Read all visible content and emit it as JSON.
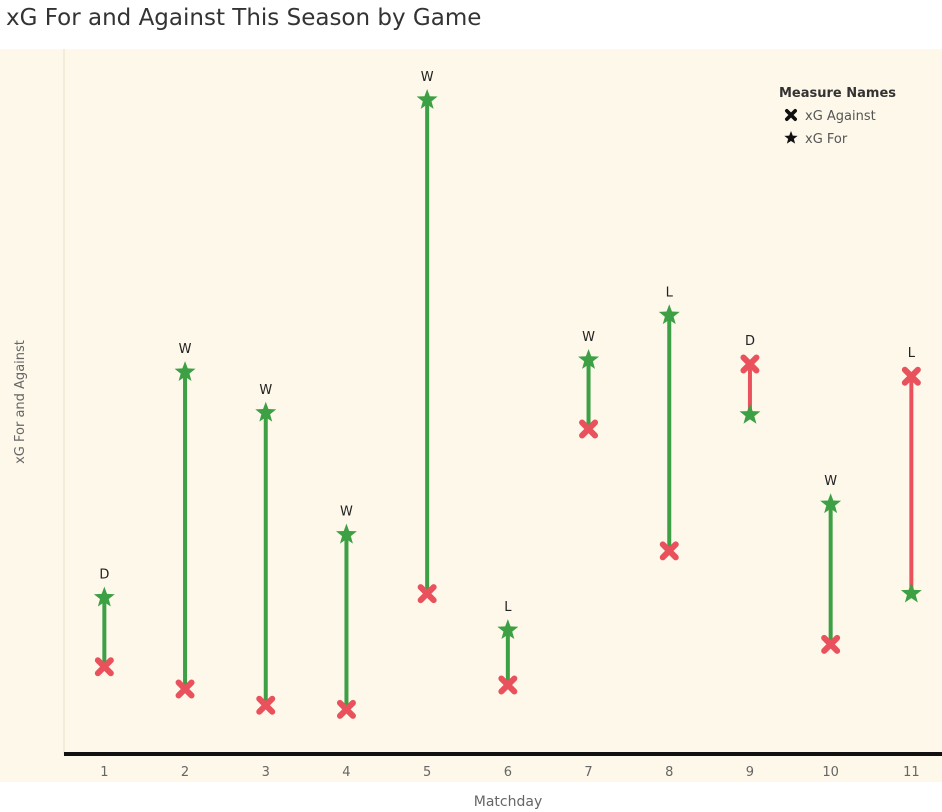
{
  "header": {
    "title": "xG For and Against This Season by Game"
  },
  "colors": {
    "background": "#fdf8ea",
    "for_better": "#3ea045",
    "against_better": "#e9525c",
    "axis_line": "#111111"
  },
  "chart_data": {
    "type": "dumbbell",
    "title": "xG For and Against This Season by Game",
    "xlabel": "Matchday",
    "ylabel": "xG For and Against",
    "y_axis_ticks_shown": false,
    "ylim": [
      0,
      3.5
    ],
    "grid": false,
    "legend": {
      "title": "Measure Names",
      "placement": "top-right",
      "entries": [
        {
          "name": "xG Against",
          "marker": "cross"
        },
        {
          "name": "xG For",
          "marker": "star"
        }
      ]
    },
    "categories": [
      "1",
      "2",
      "3",
      "4",
      "5",
      "6",
      "7",
      "8",
      "9",
      "10",
      "11"
    ],
    "results": [
      "D",
      "W",
      "W",
      "W",
      "W",
      "L",
      "W",
      "L",
      "D",
      "W",
      "L"
    ],
    "series": [
      {
        "name": "xG For",
        "marker": "star",
        "values": [
          0.75,
          1.86,
          1.66,
          1.06,
          3.2,
          0.59,
          1.92,
          2.14,
          1.65,
          1.21,
          0.77
        ]
      },
      {
        "name": "xG Against",
        "marker": "cross",
        "values": [
          0.41,
          0.3,
          0.22,
          0.2,
          0.77,
          0.32,
          1.58,
          0.98,
          1.9,
          0.52,
          1.84
        ]
      }
    ]
  }
}
